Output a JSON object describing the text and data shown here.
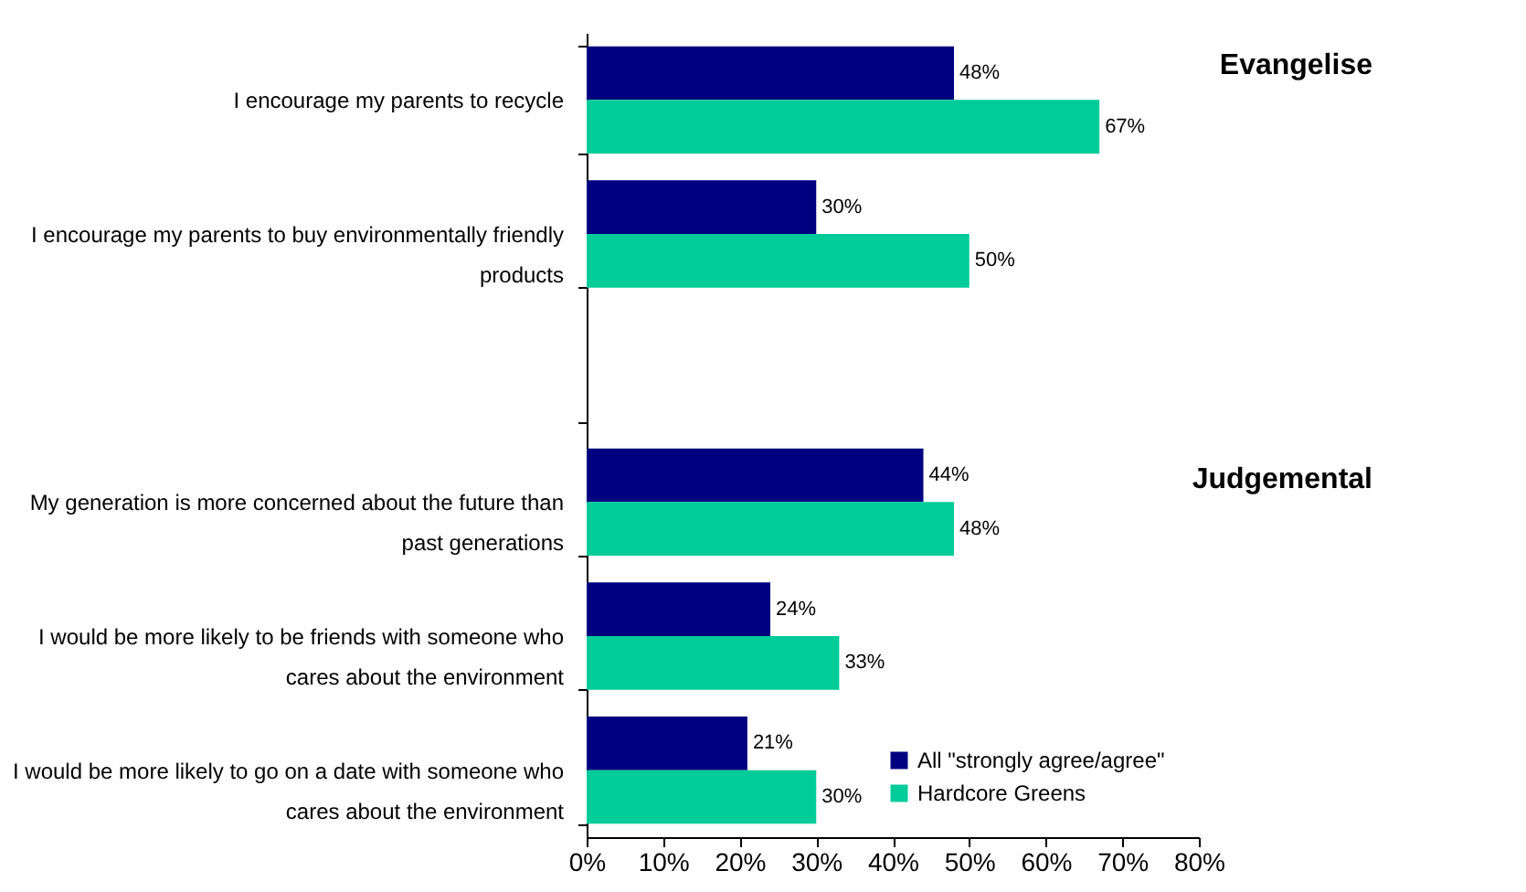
{
  "chart_data": {
    "type": "bar",
    "orientation": "horizontal",
    "categories": [
      "I encourage my parents to recycle",
      "I encourage my parents to buy environmentally friendly products",
      null,
      "My generation is more concerned about the future than past generations",
      "I would be more likely to be friends with someone who cares about the environment",
      "I would be more likely to go on a date with someone who cares about the environment"
    ],
    "series": [
      {
        "name": "All \"strongly agree/agree\"",
        "color": "#000080",
        "values": [
          48,
          30,
          null,
          44,
          24,
          21
        ],
        "value_labels": [
          "48%",
          "30%",
          null,
          "44%",
          "24%",
          "21%"
        ]
      },
      {
        "name": "Hardcore Greens",
        "color": "#00cc99",
        "values": [
          67,
          50,
          null,
          48,
          33,
          30
        ],
        "value_labels": [
          "67%",
          "50%",
          null,
          "48%",
          "33%",
          "30%"
        ]
      }
    ],
    "xlim": [
      0,
      80
    ],
    "xticks": [
      {
        "value": 0,
        "label": "0%"
      },
      {
        "value": 10,
        "label": "10%"
      },
      {
        "value": 20,
        "label": "20%"
      },
      {
        "value": 30,
        "label": "30%"
      },
      {
        "value": 40,
        "label": "40%"
      },
      {
        "value": 50,
        "label": "50%"
      },
      {
        "value": 60,
        "label": "60%"
      },
      {
        "value": 70,
        "label": "70%"
      },
      {
        "value": 80,
        "label": "80%"
      }
    ],
    "annotations": [
      "Evangelise",
      "Judgemental"
    ],
    "legend": "bottom right",
    "grid": false
  }
}
